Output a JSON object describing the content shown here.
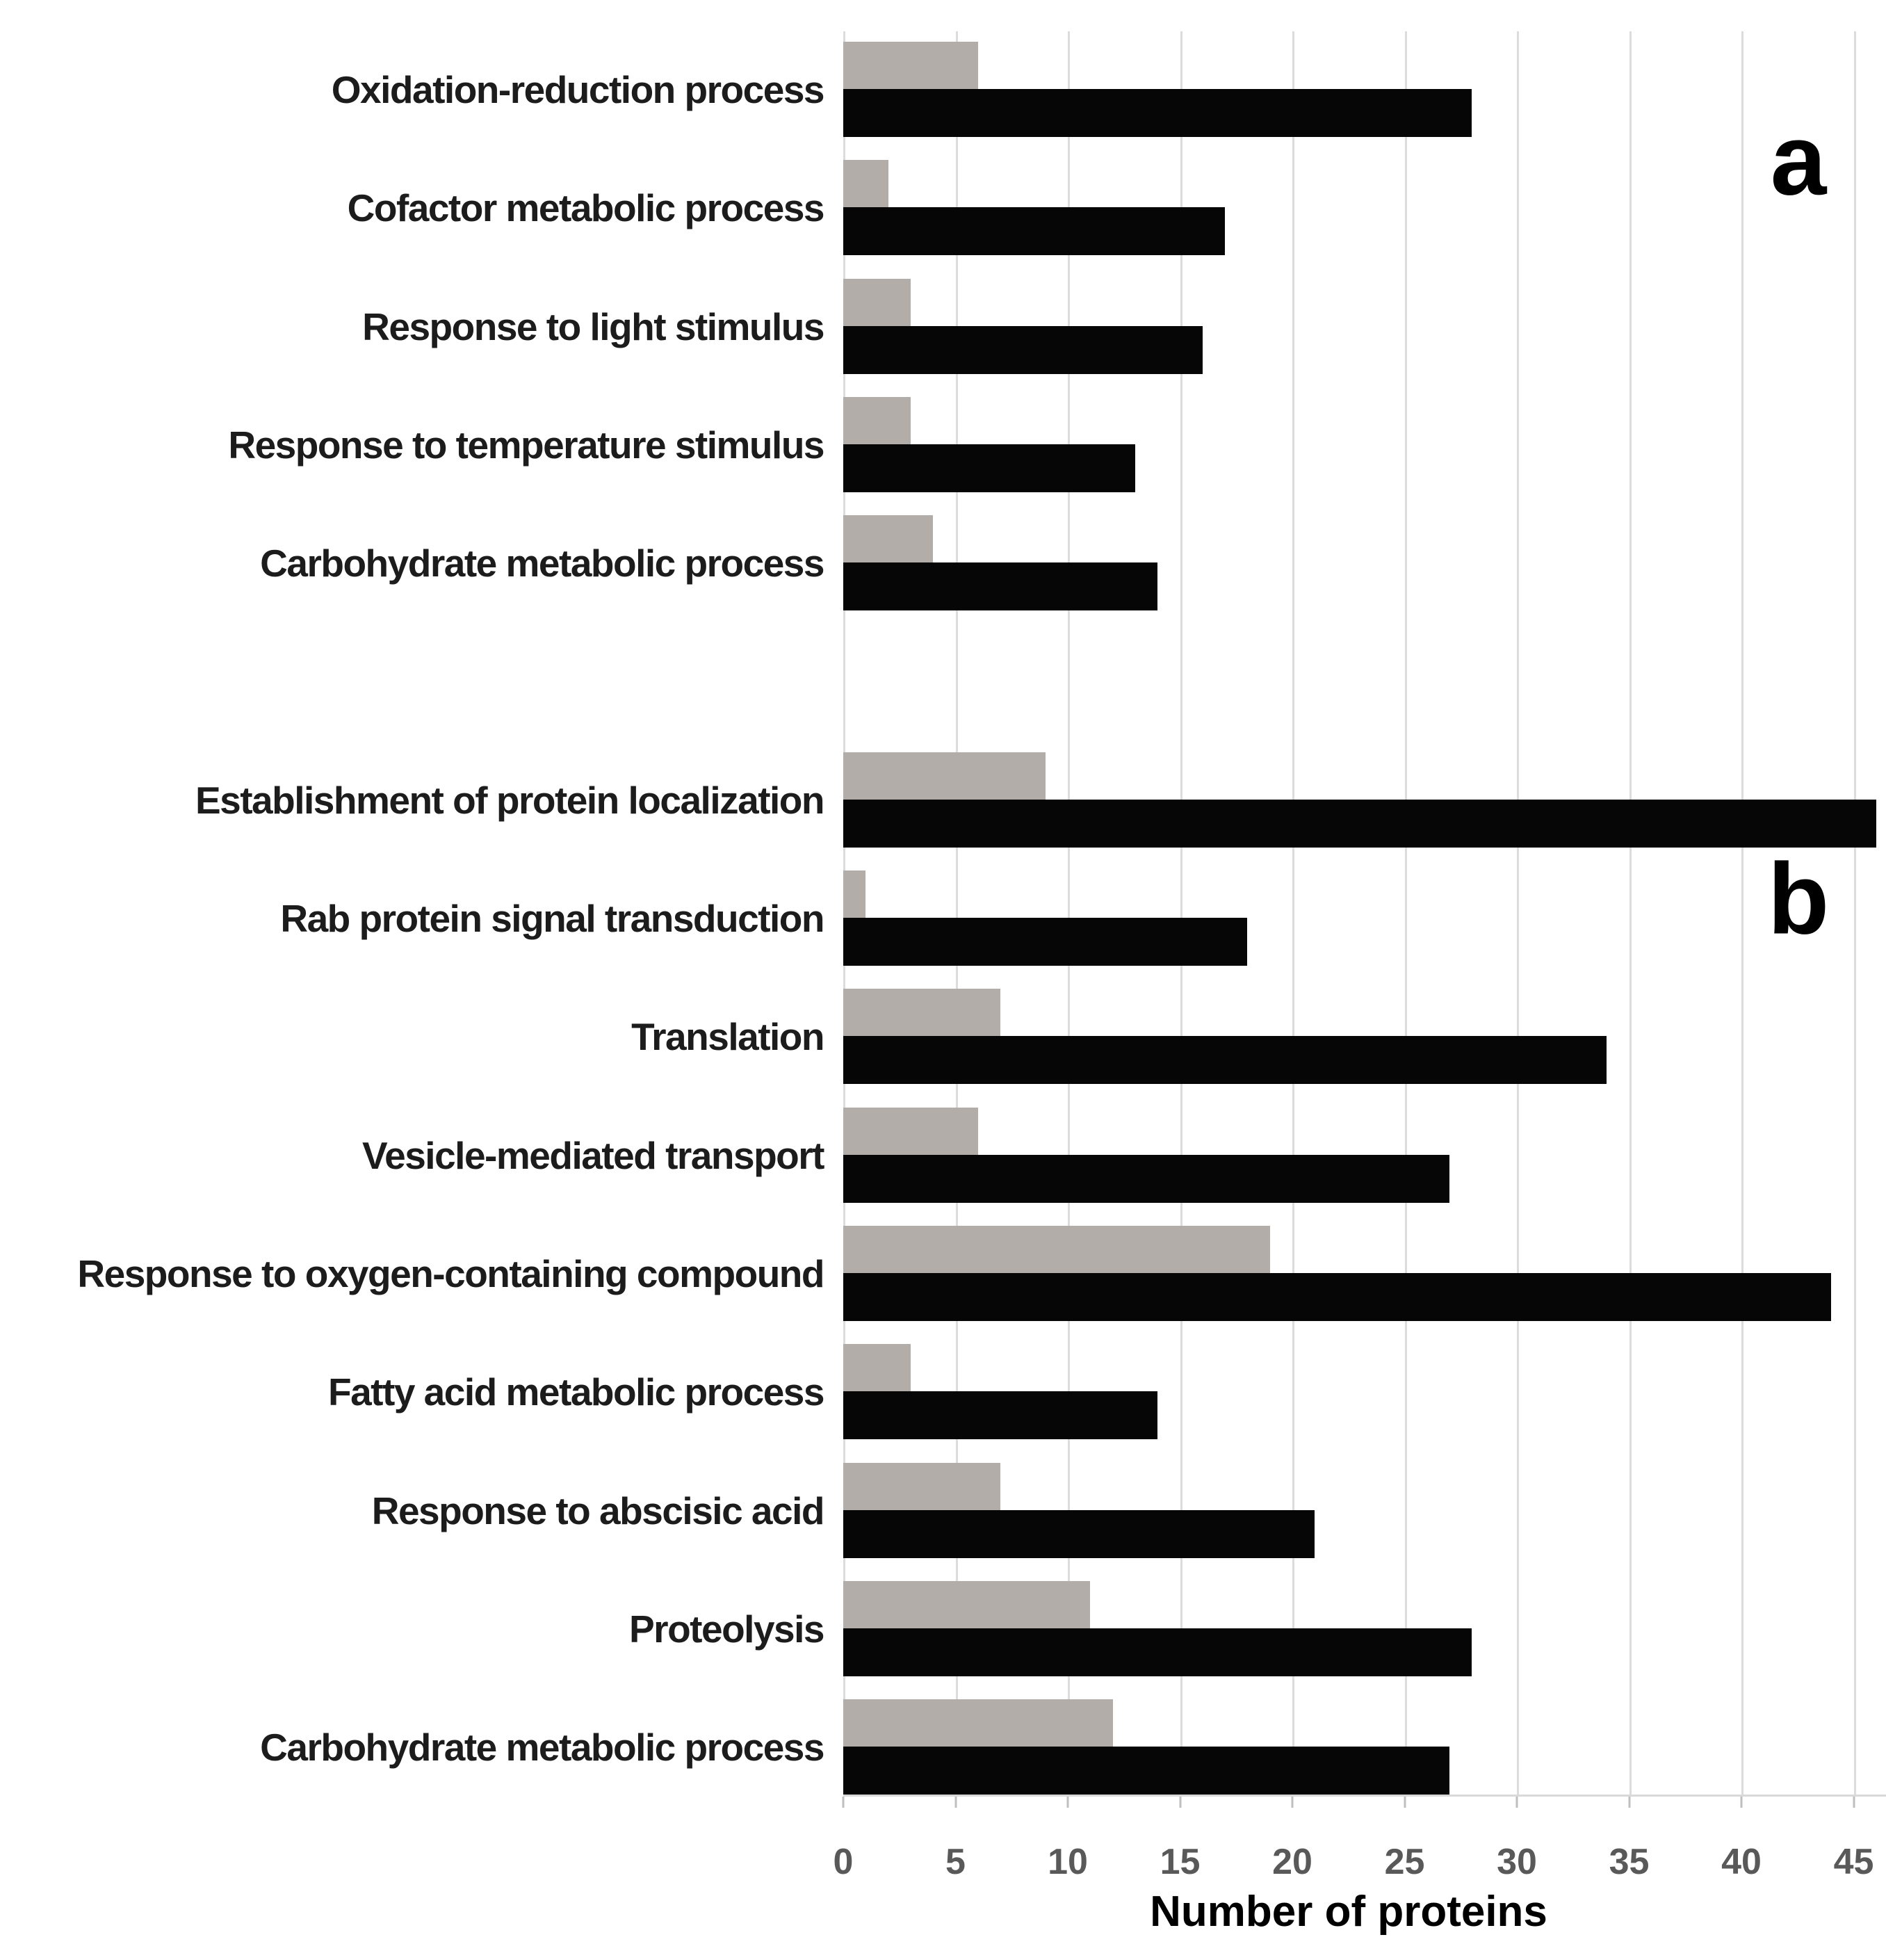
{
  "figure": {
    "panel_a_label": "a",
    "panel_b_label": "b",
    "xlabel": "Number of proteins",
    "colors": {
      "gray_series": "#b2ada9",
      "black_series": "#060606",
      "gridline": "#dcdcdc",
      "axis_line": "#d9d9d9",
      "tick_mark": "#bfbfbf",
      "tick_text": "#595959",
      "category_text": "#1c1c1c",
      "background": "#ffffff"
    }
  },
  "chart_data": {
    "type": "bar",
    "orientation": "horizontal",
    "title": "",
    "xlabel": "Number of proteins",
    "ylabel": "",
    "x_ticks": [
      0,
      5,
      10,
      15,
      20,
      25,
      30,
      35,
      40,
      45
    ],
    "xlim": [
      0,
      46.4
    ],
    "grid": true,
    "legend": null,
    "note": "Two panels (a, b) share one x-axis; each category has a gray bar above a black bar; the longest black bar (46) runs past the 45 gridline to the plot edge.",
    "sections": [
      {
        "panel": "a",
        "categories": [
          "Oxidation-reduction process",
          "Cofactor metabolic process",
          "Response to light stimulus",
          "Response to temperature stimulus",
          "Carbohydrate metabolic process"
        ],
        "series": [
          {
            "name": "gray_bars",
            "color": "#b2ada9",
            "values": [
              6,
              2,
              3,
              3,
              4
            ]
          },
          {
            "name": "black_bars",
            "color": "#060606",
            "values": [
              28,
              17,
              16,
              13,
              14
            ]
          }
        ]
      },
      {
        "panel": "b",
        "categories": [
          "Establishment of protein localization",
          "Rab protein signal transduction",
          "Translation",
          "Vesicle-mediated transport",
          "Response to oxygen-containing compound",
          "Fatty acid metabolic process",
          "Response to abscisic acid",
          "Proteolysis",
          "Carbohydrate metabolic process"
        ],
        "series": [
          {
            "name": "gray_bars",
            "color": "#b2ada9",
            "values": [
              9,
              1,
              7,
              6,
              19,
              3,
              7,
              11,
              12
            ]
          },
          {
            "name": "black_bars",
            "color": "#060606",
            "values": [
              46,
              18,
              34,
              27,
              44,
              14,
              21,
              28,
              27
            ]
          }
        ]
      }
    ]
  }
}
